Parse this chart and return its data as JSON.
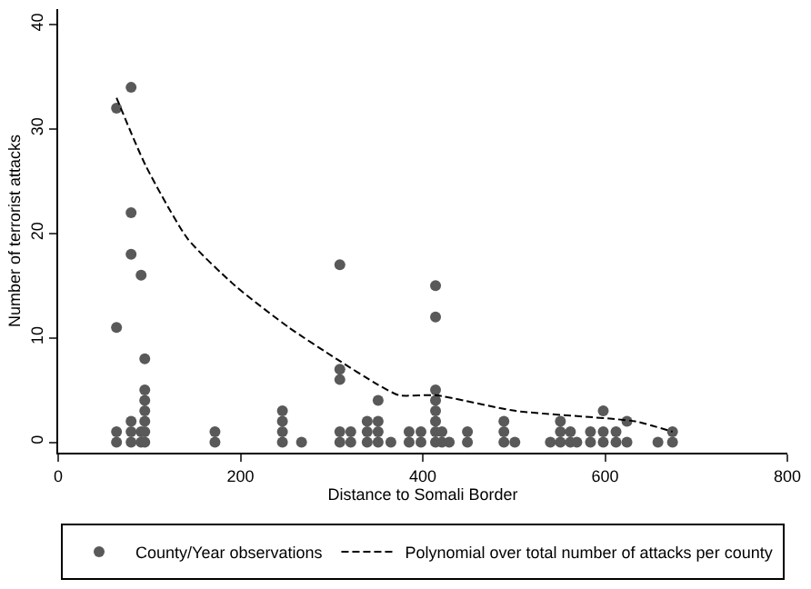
{
  "chart_data": {
    "type": "scatter",
    "xlabel": "Distance to Somali Border",
    "ylabel": "Number of terrorist attacks",
    "xlim": [
      0,
      800
    ],
    "ylim": [
      -1,
      41.5
    ],
    "xticks": [
      0,
      200,
      400,
      600,
      800
    ],
    "yticks": [
      0,
      10,
      20,
      30,
      40
    ],
    "legend": "bottom",
    "marker": "circle",
    "series": [
      {
        "name": "County/Year observations",
        "color": "#595959",
        "x": [
          64,
          64,
          64,
          64,
          80,
          80,
          80,
          80,
          80,
          80,
          91,
          91,
          91,
          95,
          95,
          95,
          95,
          95,
          95,
          95,
          172,
          172,
          246,
          246,
          246,
          246,
          267,
          309,
          309,
          309,
          309,
          309,
          321,
          321,
          339,
          339,
          339,
          351,
          351,
          351,
          351,
          365,
          385,
          385,
          398,
          398,
          414,
          414,
          414,
          414,
          414,
          414,
          414,
          414,
          421,
          421,
          429,
          449,
          449,
          489,
          489,
          489,
          501,
          540,
          551,
          551,
          551,
          562,
          562,
          569,
          584,
          584,
          598,
          598,
          598,
          612,
          612,
          624,
          624,
          658,
          674,
          674
        ],
        "values": [
          32,
          11,
          1,
          0,
          34,
          22,
          18,
          2,
          1,
          0,
          16,
          1,
          0,
          8,
          5,
          4,
          3,
          2,
          1,
          0,
          1,
          0,
          3,
          2,
          1,
          0,
          0,
          17,
          7,
          6,
          1,
          0,
          1,
          0,
          2,
          1,
          0,
          4,
          2,
          1,
          0,
          0,
          1,
          0,
          1,
          0,
          15,
          12,
          5,
          4,
          3,
          2,
          1,
          0,
          1,
          0,
          0,
          1,
          0,
          2,
          1,
          0,
          0,
          0,
          2,
          1,
          0,
          1,
          0,
          0,
          1,
          0,
          3,
          1,
          0,
          1,
          0,
          2,
          0,
          0,
          1,
          0
        ]
      },
      {
        "name": "Polynomial over total number of attacks per county",
        "type": "line",
        "line_style": "dashed",
        "marker": "none",
        "color": "#000000",
        "x": [
          64,
          96,
          142,
          194,
          253,
          305,
          351,
          374,
          414,
          502,
          633,
          674
        ],
        "values": [
          33,
          26.5,
          19.5,
          15,
          11,
          8,
          5.5,
          4.5,
          4.5,
          3,
          2,
          1
        ]
      }
    ]
  }
}
